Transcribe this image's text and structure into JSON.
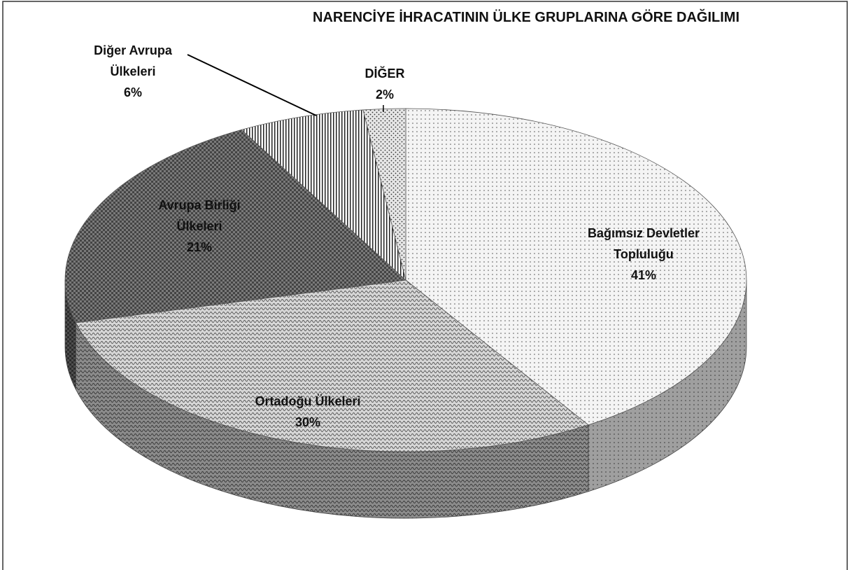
{
  "chart_data": {
    "type": "pie3d",
    "title": "NARENCİYE İHRACATININ ÜLKE GRUPLARINA GÖRE DAĞILIMI",
    "categories": [
      "Bağımsız Devletler Topluluğu",
      "Ortadoğu Ülkeleri",
      "Avrupa Birliği Ülkeleri",
      "Diğer Avrupa Ülkeleri",
      "DİĞER"
    ],
    "values": [
      41,
      30,
      21,
      6,
      2
    ],
    "value_labels": [
      "41%",
      "30%",
      "21%",
      "6%",
      "2%"
    ],
    "colors": [
      "#f4f4f4",
      "#d6d6d6",
      "#7a7a7a",
      "#ffffff",
      "#e6e6e6"
    ]
  }
}
